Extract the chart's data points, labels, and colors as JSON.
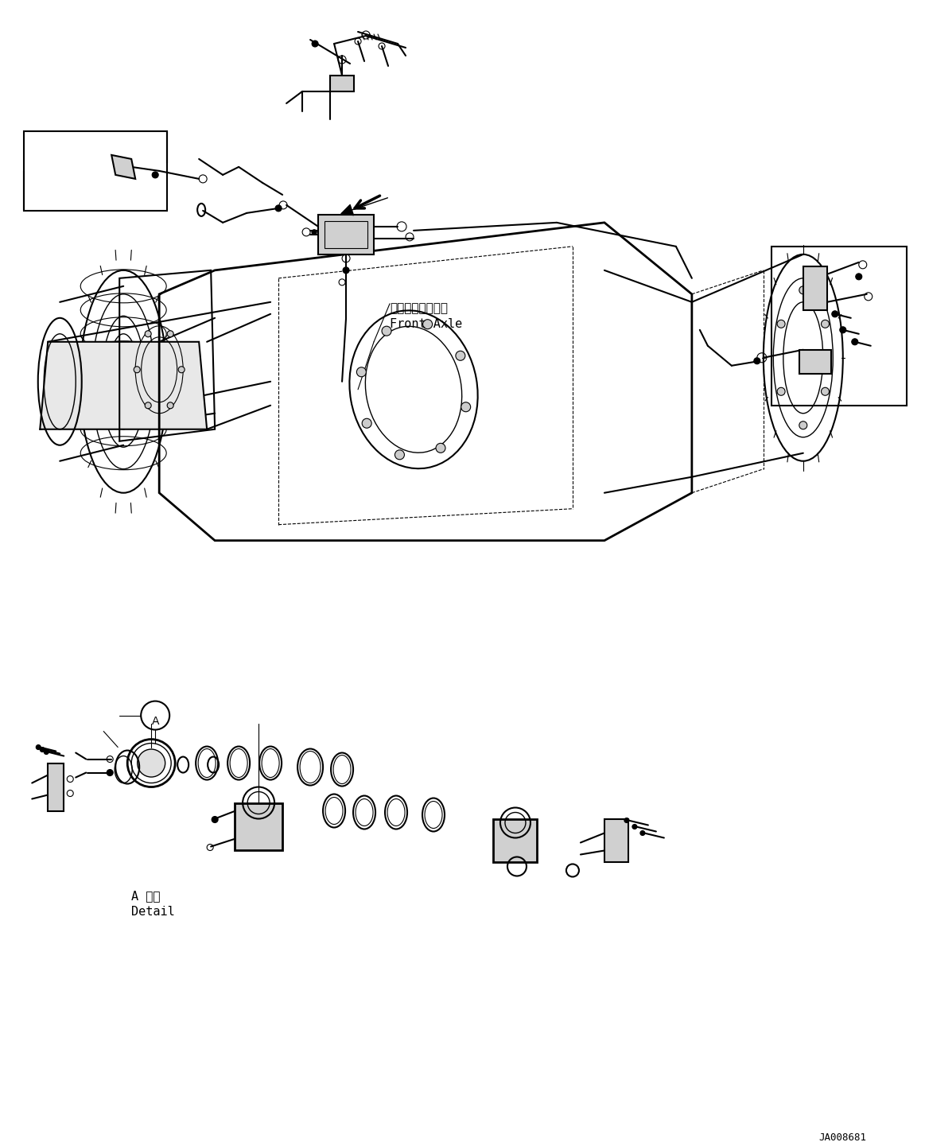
{
  "background_color": "#ffffff",
  "fig_width": 11.63,
  "fig_height": 14.41,
  "dpi": 100,
  "label_front_axle_jp": "フロントアクスル",
  "label_front_axle_en": "Front Axle",
  "label_detail_jp": "A 詳細",
  "label_detail_en": "Detail",
  "label_part_number": "JA008681",
  "line_color": "#000000",
  "text_color": "#000000"
}
